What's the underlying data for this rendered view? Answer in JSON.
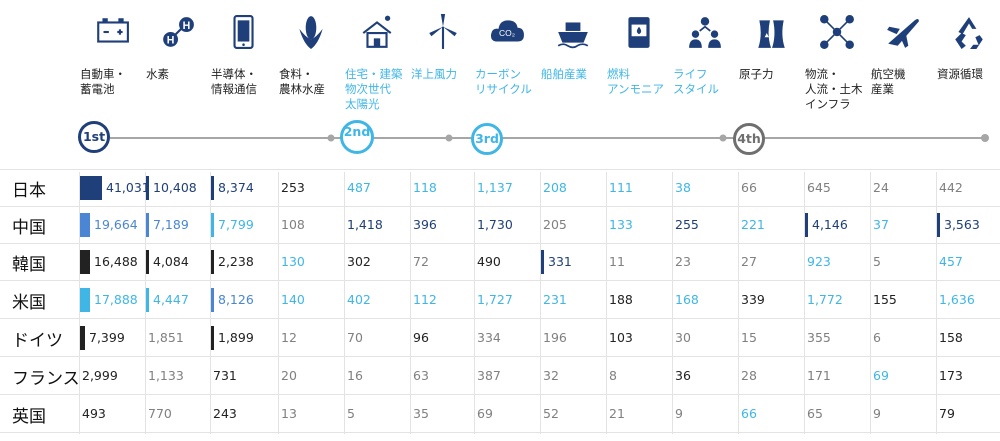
{
  "chart_data": {
    "type": "table",
    "categories": [
      "自動車・\n蓄電池",
      "水素",
      "半導体・\n情報通信",
      "食料・\n農林水産",
      "住宅・建築\n物次世代\n太陽光",
      "洋上風力",
      "カーボン\nリサイクル",
      "船舶産業",
      "燃料\nアンモニア",
      "ライフ\nスタイル",
      "原子力",
      "物流・\n人流・土木\nインフラ",
      "航空機\n産業",
      "資源循環"
    ],
    "category_icons": [
      "battery-icon",
      "hydrogen-icon",
      "smartphone-icon",
      "corn-icon",
      "house-solar-icon",
      "wind-turbine-icon",
      "co2-cloud-icon",
      "ship-icon",
      "fuel-tank-icon",
      "people-icon",
      "nuclear-plant-icon",
      "logistics-network-icon",
      "airplane-icon",
      "recycle-icon"
    ],
    "stages": [
      {
        "label": "1st",
        "style": "dark"
      },
      {
        "label": "2nd",
        "style": "light"
      },
      {
        "label": "3rd",
        "style": "light"
      },
      {
        "label": "4th",
        "style": "gray"
      }
    ],
    "rows": [
      {
        "country": "日本",
        "values": [
          41031,
          10408,
          8374,
          253,
          487,
          118,
          1137,
          208,
          111,
          38,
          66,
          645,
          24,
          442
        ]
      },
      {
        "country": "中国",
        "values": [
          19664,
          7189,
          7799,
          108,
          1418,
          396,
          1730,
          205,
          133,
          255,
          221,
          4146,
          37,
          3563
        ]
      },
      {
        "country": "韓国",
        "values": [
          16488,
          4084,
          2238,
          130,
          302,
          72,
          490,
          331,
          11,
          23,
          27,
          923,
          5,
          457
        ]
      },
      {
        "country": "米国",
        "values": [
          17888,
          4447,
          8126,
          140,
          402,
          112,
          1727,
          231,
          188,
          168,
          339,
          1772,
          155,
          1636
        ]
      },
      {
        "country": "ドイツ",
        "values": [
          7399,
          1851,
          1899,
          12,
          70,
          96,
          334,
          196,
          103,
          30,
          15,
          355,
          6,
          158
        ]
      },
      {
        "country": "フランス",
        "values": [
          2999,
          1133,
          731,
          20,
          16,
          63,
          387,
          32,
          8,
          36,
          28,
          171,
          69,
          173
        ]
      },
      {
        "country": "英国",
        "values": [
          493,
          770,
          243,
          13,
          5,
          35,
          69,
          52,
          21,
          9,
          66,
          65,
          9,
          79
        ]
      }
    ],
    "colors": {
      "dark": "#1f3f7a",
      "mid": "#4a86d4",
      "light": "#3fb6e6",
      "black": "#222222",
      "gray": "#808080",
      "header_light": "#3fb6e6"
    },
    "cell_colors": [
      [
        "dark",
        "dark",
        "dark",
        "black",
        "light",
        "light",
        "light",
        "light",
        "light",
        "light",
        "gray",
        "gray",
        "gray",
        "gray"
      ],
      [
        "mid",
        "mid",
        "light",
        "gray",
        "dark",
        "dark",
        "dark",
        "gray",
        "light",
        "dark",
        "light",
        "dark",
        "light",
        "dark"
      ],
      [
        "black",
        "black",
        "black",
        "light",
        "black",
        "gray",
        "black",
        "dark",
        "gray",
        "gray",
        "gray",
        "light",
        "gray",
        "light"
      ],
      [
        "light",
        "light",
        "mid",
        "light",
        "light",
        "light",
        "light",
        "light",
        "black",
        "light",
        "black",
        "light",
        "black",
        "light"
      ],
      [
        "black",
        "gray",
        "black",
        "gray",
        "gray",
        "black",
        "gray",
        "gray",
        "black",
        "gray",
        "gray",
        "gray",
        "gray",
        "black"
      ],
      [
        "black",
        "gray",
        "black",
        "gray",
        "gray",
        "gray",
        "gray",
        "gray",
        "gray",
        "black",
        "gray",
        "gray",
        "light",
        "black"
      ],
      [
        "black",
        "gray",
        "black",
        "gray",
        "gray",
        "gray",
        "gray",
        "gray",
        "gray",
        "gray",
        "light",
        "gray",
        "gray",
        "black"
      ]
    ],
    "cell_bars": [
      [
        true,
        true,
        true,
        false,
        false,
        false,
        false,
        false,
        false,
        false,
        false,
        false,
        false,
        false
      ],
      [
        true,
        true,
        true,
        false,
        false,
        false,
        false,
        false,
        false,
        false,
        false,
        true,
        false,
        true
      ],
      [
        true,
        true,
        true,
        false,
        false,
        false,
        false,
        true,
        false,
        false,
        false,
        false,
        false,
        false
      ],
      [
        true,
        true,
        true,
        false,
        false,
        false,
        false,
        false,
        false,
        false,
        false,
        false,
        false,
        false
      ],
      [
        true,
        false,
        true,
        false,
        false,
        false,
        false,
        false,
        false,
        false,
        false,
        false,
        false,
        false
      ],
      [
        false,
        false,
        false,
        false,
        false,
        false,
        false,
        false,
        false,
        false,
        false,
        false,
        false,
        false
      ],
      [
        false,
        false,
        false,
        false,
        false,
        false,
        false,
        false,
        false,
        false,
        false,
        false,
        false,
        false
      ]
    ]
  }
}
